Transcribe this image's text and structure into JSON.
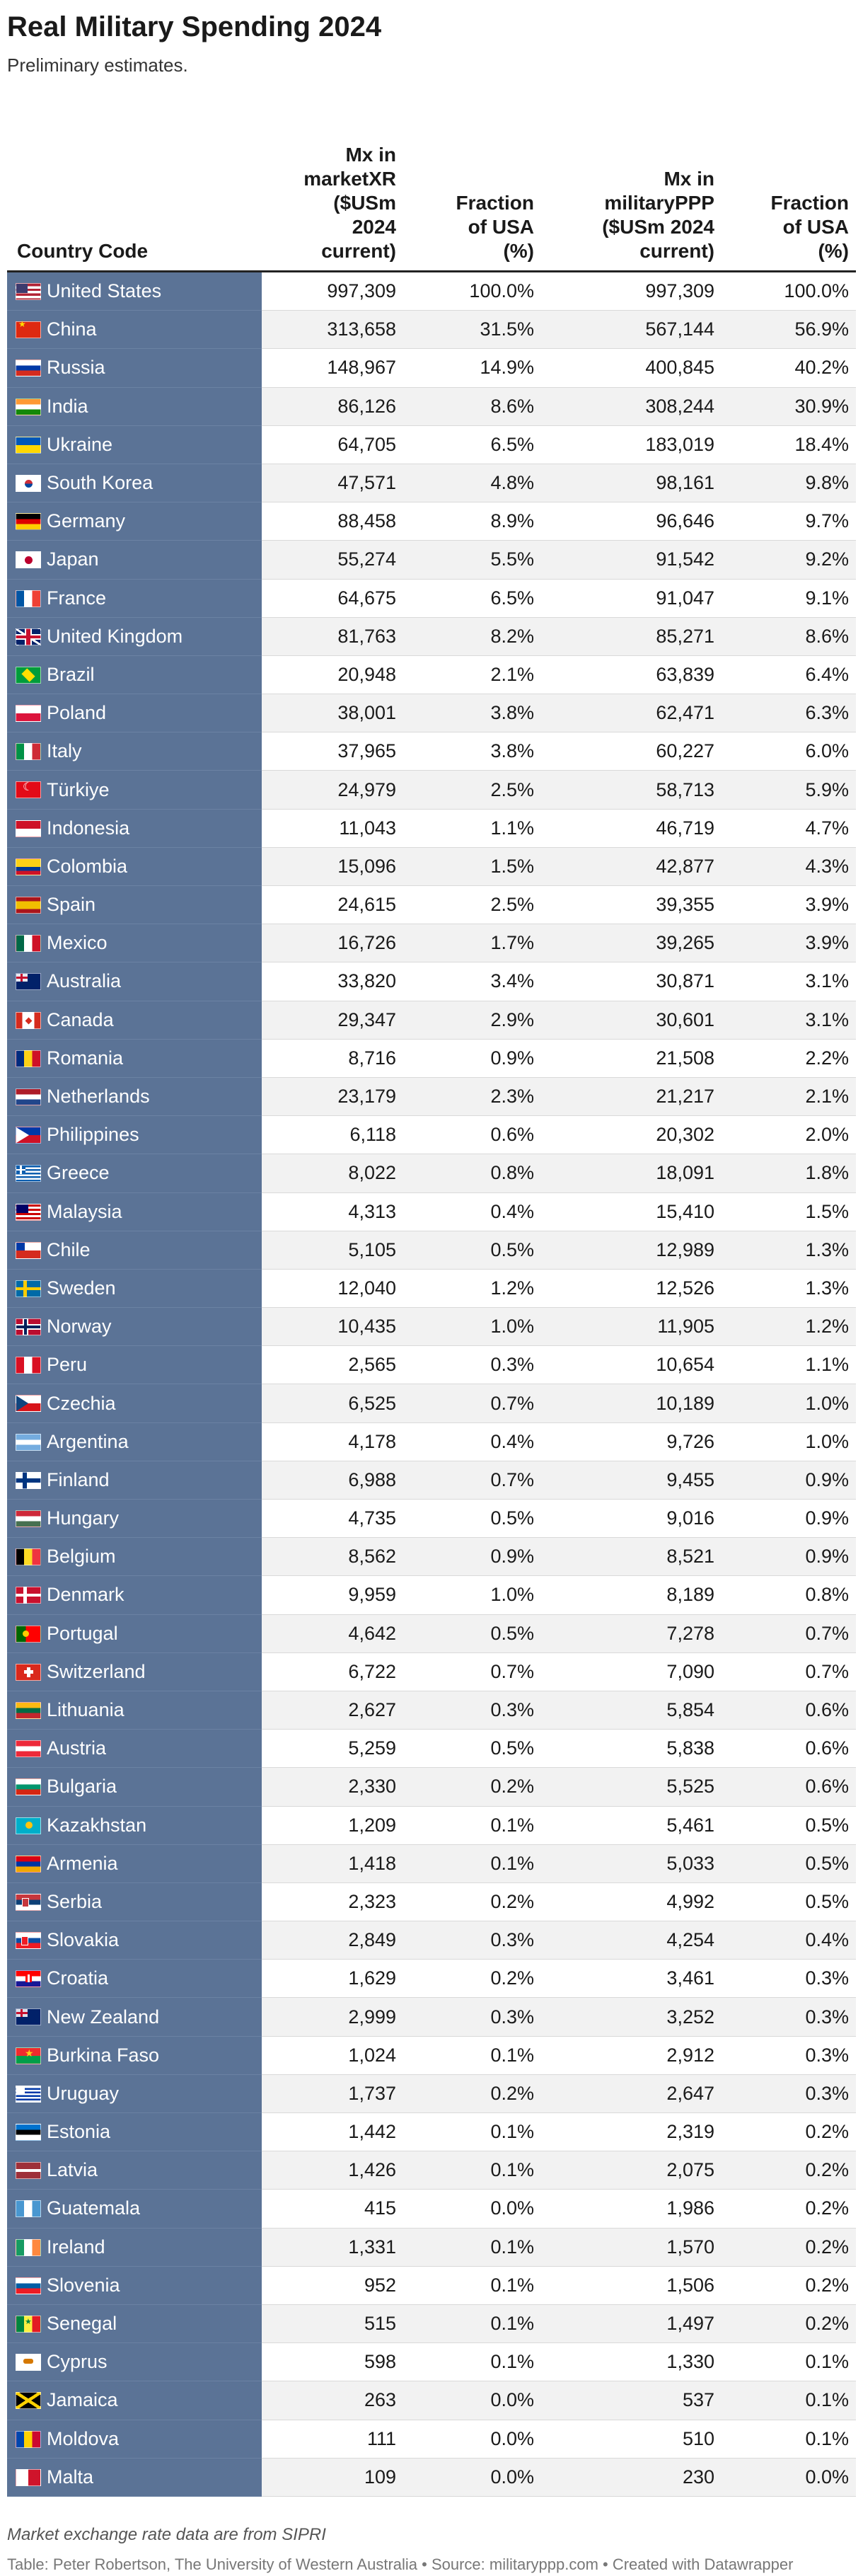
{
  "chart_data": {
    "type": "table",
    "title": "Real Military Spending 2024",
    "subtitle": "Preliminary estimates.",
    "columns": [
      "Country Code",
      "Mx in marketXR ($USm 2024 current)",
      "Fraction of USA (%)",
      "Mx in militaryPPP ($USm 2024 current)",
      "Fraction of USA (%)"
    ],
    "header_lines": [
      [
        "Country Code"
      ],
      [
        "Mx in",
        "marketXR",
        "($USm",
        "2024",
        "current)"
      ],
      [
        "Fraction",
        "of USA",
        "(%)"
      ],
      [
        "Mx in",
        "militaryPPP",
        "($USm 2024",
        "current)"
      ],
      [
        "Fraction",
        "of USA",
        "(%)"
      ]
    ],
    "rows": [
      {
        "flag": "us",
        "country": "United States",
        "mx_market": "997,309",
        "frac_market": "100.0%",
        "mx_ppp": "997,309",
        "frac_ppp": "100.0%"
      },
      {
        "flag": "cn",
        "country": "China",
        "mx_market": "313,658",
        "frac_market": "31.5%",
        "mx_ppp": "567,144",
        "frac_ppp": "56.9%"
      },
      {
        "flag": "ru",
        "country": "Russia",
        "mx_market": "148,967",
        "frac_market": "14.9%",
        "mx_ppp": "400,845",
        "frac_ppp": "40.2%"
      },
      {
        "flag": "in",
        "country": "India",
        "mx_market": "86,126",
        "frac_market": "8.6%",
        "mx_ppp": "308,244",
        "frac_ppp": "30.9%"
      },
      {
        "flag": "ua",
        "country": "Ukraine",
        "mx_market": "64,705",
        "frac_market": "6.5%",
        "mx_ppp": "183,019",
        "frac_ppp": "18.4%"
      },
      {
        "flag": "kr",
        "country": "South Korea",
        "mx_market": "47,571",
        "frac_market": "4.8%",
        "mx_ppp": "98,161",
        "frac_ppp": "9.8%"
      },
      {
        "flag": "de",
        "country": "Germany",
        "mx_market": "88,458",
        "frac_market": "8.9%",
        "mx_ppp": "96,646",
        "frac_ppp": "9.7%"
      },
      {
        "flag": "jp",
        "country": "Japan",
        "mx_market": "55,274",
        "frac_market": "5.5%",
        "mx_ppp": "91,542",
        "frac_ppp": "9.2%"
      },
      {
        "flag": "fr",
        "country": "France",
        "mx_market": "64,675",
        "frac_market": "6.5%",
        "mx_ppp": "91,047",
        "frac_ppp": "9.1%"
      },
      {
        "flag": "gb",
        "country": "United Kingdom",
        "mx_market": "81,763",
        "frac_market": "8.2%",
        "mx_ppp": "85,271",
        "frac_ppp": "8.6%"
      },
      {
        "flag": "br",
        "country": "Brazil",
        "mx_market": "20,948",
        "frac_market": "2.1%",
        "mx_ppp": "63,839",
        "frac_ppp": "6.4%"
      },
      {
        "flag": "pl",
        "country": "Poland",
        "mx_market": "38,001",
        "frac_market": "3.8%",
        "mx_ppp": "62,471",
        "frac_ppp": "6.3%"
      },
      {
        "flag": "it",
        "country": "Italy",
        "mx_market": "37,965",
        "frac_market": "3.8%",
        "mx_ppp": "60,227",
        "frac_ppp": "6.0%"
      },
      {
        "flag": "tr",
        "country": "Türkiye",
        "mx_market": "24,979",
        "frac_market": "2.5%",
        "mx_ppp": "58,713",
        "frac_ppp": "5.9%"
      },
      {
        "flag": "id",
        "country": "Indonesia",
        "mx_market": "11,043",
        "frac_market": "1.1%",
        "mx_ppp": "46,719",
        "frac_ppp": "4.7%"
      },
      {
        "flag": "co",
        "country": "Colombia",
        "mx_market": "15,096",
        "frac_market": "1.5%",
        "mx_ppp": "42,877",
        "frac_ppp": "4.3%"
      },
      {
        "flag": "es",
        "country": "Spain",
        "mx_market": "24,615",
        "frac_market": "2.5%",
        "mx_ppp": "39,355",
        "frac_ppp": "3.9%"
      },
      {
        "flag": "mx",
        "country": "Mexico",
        "mx_market": "16,726",
        "frac_market": "1.7%",
        "mx_ppp": "39,265",
        "frac_ppp": "3.9%"
      },
      {
        "flag": "au",
        "country": "Australia",
        "mx_market": "33,820",
        "frac_market": "3.4%",
        "mx_ppp": "30,871",
        "frac_ppp": "3.1%"
      },
      {
        "flag": "ca",
        "country": "Canada",
        "mx_market": "29,347",
        "frac_market": "2.9%",
        "mx_ppp": "30,601",
        "frac_ppp": "3.1%"
      },
      {
        "flag": "ro",
        "country": "Romania",
        "mx_market": "8,716",
        "frac_market": "0.9%",
        "mx_ppp": "21,508",
        "frac_ppp": "2.2%"
      },
      {
        "flag": "nl",
        "country": "Netherlands",
        "mx_market": "23,179",
        "frac_market": "2.3%",
        "mx_ppp": "21,217",
        "frac_ppp": "2.1%"
      },
      {
        "flag": "ph",
        "country": "Philippines",
        "mx_market": "6,118",
        "frac_market": "0.6%",
        "mx_ppp": "20,302",
        "frac_ppp": "2.0%"
      },
      {
        "flag": "gr",
        "country": "Greece",
        "mx_market": "8,022",
        "frac_market": "0.8%",
        "mx_ppp": "18,091",
        "frac_ppp": "1.8%"
      },
      {
        "flag": "my",
        "country": "Malaysia",
        "mx_market": "4,313",
        "frac_market": "0.4%",
        "mx_ppp": "15,410",
        "frac_ppp": "1.5%"
      },
      {
        "flag": "cl",
        "country": "Chile",
        "mx_market": "5,105",
        "frac_market": "0.5%",
        "mx_ppp": "12,989",
        "frac_ppp": "1.3%"
      },
      {
        "flag": "se",
        "country": "Sweden",
        "mx_market": "12,040",
        "frac_market": "1.2%",
        "mx_ppp": "12,526",
        "frac_ppp": "1.3%"
      },
      {
        "flag": "no",
        "country": "Norway",
        "mx_market": "10,435",
        "frac_market": "1.0%",
        "mx_ppp": "11,905",
        "frac_ppp": "1.2%"
      },
      {
        "flag": "pe",
        "country": "Peru",
        "mx_market": "2,565",
        "frac_market": "0.3%",
        "mx_ppp": "10,654",
        "frac_ppp": "1.1%"
      },
      {
        "flag": "cz",
        "country": "Czechia",
        "mx_market": "6,525",
        "frac_market": "0.7%",
        "mx_ppp": "10,189",
        "frac_ppp": "1.0%"
      },
      {
        "flag": "ar",
        "country": "Argentina",
        "mx_market": "4,178",
        "frac_market": "0.4%",
        "mx_ppp": "9,726",
        "frac_ppp": "1.0%"
      },
      {
        "flag": "fi",
        "country": "Finland",
        "mx_market": "6,988",
        "frac_market": "0.7%",
        "mx_ppp": "9,455",
        "frac_ppp": "0.9%"
      },
      {
        "flag": "hu",
        "country": "Hungary",
        "mx_market": "4,735",
        "frac_market": "0.5%",
        "mx_ppp": "9,016",
        "frac_ppp": "0.9%"
      },
      {
        "flag": "be",
        "country": "Belgium",
        "mx_market": "8,562",
        "frac_market": "0.9%",
        "mx_ppp": "8,521",
        "frac_ppp": "0.9%"
      },
      {
        "flag": "dk",
        "country": "Denmark",
        "mx_market": "9,959",
        "frac_market": "1.0%",
        "mx_ppp": "8,189",
        "frac_ppp": "0.8%"
      },
      {
        "flag": "pt",
        "country": "Portugal",
        "mx_market": "4,642",
        "frac_market": "0.5%",
        "mx_ppp": "7,278",
        "frac_ppp": "0.7%"
      },
      {
        "flag": "ch",
        "country": "Switzerland",
        "mx_market": "6,722",
        "frac_market": "0.7%",
        "mx_ppp": "7,090",
        "frac_ppp": "0.7%"
      },
      {
        "flag": "lt",
        "country": "Lithuania",
        "mx_market": "2,627",
        "frac_market": "0.3%",
        "mx_ppp": "5,854",
        "frac_ppp": "0.6%"
      },
      {
        "flag": "at",
        "country": "Austria",
        "mx_market": "5,259",
        "frac_market": "0.5%",
        "mx_ppp": "5,838",
        "frac_ppp": "0.6%"
      },
      {
        "flag": "bg",
        "country": "Bulgaria",
        "mx_market": "2,330",
        "frac_market": "0.2%",
        "mx_ppp": "5,525",
        "frac_ppp": "0.6%"
      },
      {
        "flag": "kz",
        "country": "Kazakhstan",
        "mx_market": "1,209",
        "frac_market": "0.1%",
        "mx_ppp": "5,461",
        "frac_ppp": "0.5%"
      },
      {
        "flag": "am",
        "country": "Armenia",
        "mx_market": "1,418",
        "frac_market": "0.1%",
        "mx_ppp": "5,033",
        "frac_ppp": "0.5%"
      },
      {
        "flag": "rs",
        "country": "Serbia",
        "mx_market": "2,323",
        "frac_market": "0.2%",
        "mx_ppp": "4,992",
        "frac_ppp": "0.5%"
      },
      {
        "flag": "sk",
        "country": "Slovakia",
        "mx_market": "2,849",
        "frac_market": "0.3%",
        "mx_ppp": "4,254",
        "frac_ppp": "0.4%"
      },
      {
        "flag": "hr",
        "country": "Croatia",
        "mx_market": "1,629",
        "frac_market": "0.2%",
        "mx_ppp": "3,461",
        "frac_ppp": "0.3%"
      },
      {
        "flag": "nz",
        "country": "New Zealand",
        "mx_market": "2,999",
        "frac_market": "0.3%",
        "mx_ppp": "3,252",
        "frac_ppp": "0.3%"
      },
      {
        "flag": "bf",
        "country": "Burkina Faso",
        "mx_market": "1,024",
        "frac_market": "0.1%",
        "mx_ppp": "2,912",
        "frac_ppp": "0.3%"
      },
      {
        "flag": "uy",
        "country": "Uruguay",
        "mx_market": "1,737",
        "frac_market": "0.2%",
        "mx_ppp": "2,647",
        "frac_ppp": "0.3%"
      },
      {
        "flag": "ee",
        "country": "Estonia",
        "mx_market": "1,442",
        "frac_market": "0.1%",
        "mx_ppp": "2,319",
        "frac_ppp": "0.2%"
      },
      {
        "flag": "lv",
        "country": "Latvia",
        "mx_market": "1,426",
        "frac_market": "0.1%",
        "mx_ppp": "2,075",
        "frac_ppp": "0.2%"
      },
      {
        "flag": "gt",
        "country": "Guatemala",
        "mx_market": "415",
        "frac_market": "0.0%",
        "mx_ppp": "1,986",
        "frac_ppp": "0.2%"
      },
      {
        "flag": "ie",
        "country": "Ireland",
        "mx_market": "1,331",
        "frac_market": "0.1%",
        "mx_ppp": "1,570",
        "frac_ppp": "0.2%"
      },
      {
        "flag": "si",
        "country": "Slovenia",
        "mx_market": "952",
        "frac_market": "0.1%",
        "mx_ppp": "1,506",
        "frac_ppp": "0.2%"
      },
      {
        "flag": "sn",
        "country": "Senegal",
        "mx_market": "515",
        "frac_market": "0.1%",
        "mx_ppp": "1,497",
        "frac_ppp": "0.2%"
      },
      {
        "flag": "cy",
        "country": "Cyprus",
        "mx_market": "598",
        "frac_market": "0.1%",
        "mx_ppp": "1,330",
        "frac_ppp": "0.1%"
      },
      {
        "flag": "jm",
        "country": "Jamaica",
        "mx_market": "263",
        "frac_market": "0.0%",
        "mx_ppp": "537",
        "frac_ppp": "0.1%"
      },
      {
        "flag": "md",
        "country": "Moldova",
        "mx_market": "111",
        "frac_market": "0.0%",
        "mx_ppp": "510",
        "frac_ppp": "0.1%"
      },
      {
        "flag": "mt",
        "country": "Malta",
        "mx_market": "109",
        "frac_market": "0.0%",
        "mx_ppp": "230",
        "frac_ppp": "0.0%"
      }
    ],
    "notes": "Market exchange rate data are from SIPRI",
    "credit": "Table: Peter Robertson, The University of Western Australia • Source: militaryppp.com • Created with Datawrapper",
    "colors": {
      "country_column": "#5b7396",
      "stripe": "#f2f2f2",
      "header_rule": "#222222"
    }
  }
}
